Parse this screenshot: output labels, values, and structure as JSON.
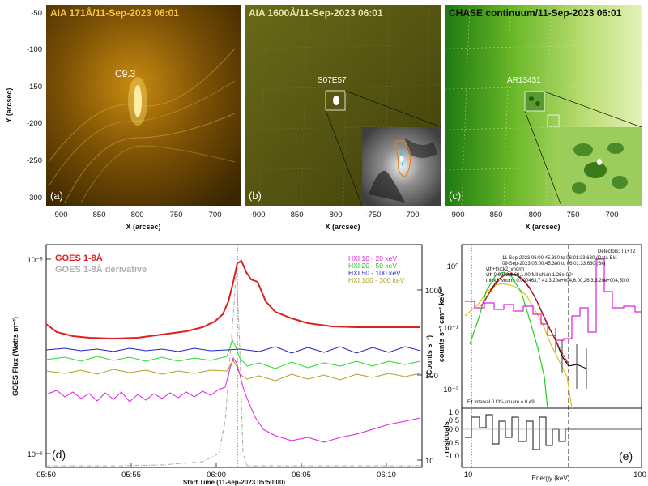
{
  "top_panels": [
    {
      "title": "AIA 171Å/11-Sep-2023 06:01",
      "tag": "(a)",
      "label": "C9.3",
      "color": "#f5c242"
    },
    {
      "title": "AIA 1600Å/11-Sep-2023 06:01",
      "tag": "(b)",
      "label": "S07E57",
      "color": "#d8d8a0"
    },
    {
      "title": "CHASE continuum/11-Sep-2023 06:01",
      "tag": "(c)",
      "label": "AR13431",
      "color": "#111111"
    }
  ],
  "top_axes": {
    "ylabel": "Y (arcsec)",
    "xlabel": "X (arcsec)",
    "yticks": [
      "-50",
      "-100",
      "-150",
      "-200",
      "-250",
      "-300"
    ],
    "xticks": [
      "-900",
      "-850",
      "-800",
      "-750",
      "-700"
    ]
  },
  "chart_data": [
    {
      "type": "line",
      "panel": "(d)",
      "title": "",
      "xlabel": "Start Time (11-sep-2023 05:50:00)",
      "ylabel_left": "GOES Flux (Watts m⁻²)",
      "ylabel_right": "(Counts s⁻¹)",
      "xticks": [
        "05:50",
        "05:55",
        "06:00",
        "06:05",
        "06:10"
      ],
      "yticks_left": [
        "10⁻⁵",
        "10⁻⁶"
      ],
      "yticks_right": [
        "1000",
        "100",
        "10"
      ],
      "legend_left": [
        {
          "name": "GOES 1-8Å",
          "color": "#e02020"
        },
        {
          "name": "GOES 1-8Å derivative",
          "color": "#b0b0b0"
        }
      ],
      "legend_right": [
        {
          "name": "HXI 10 - 20 keV",
          "color": "#e020e0"
        },
        {
          "name": "HXI 20 - 50 keV",
          "color": "#20e020"
        },
        {
          "name": "HXI 50 - 100 keV",
          "color": "#2020d0"
        },
        {
          "name": "HXI 100 - 300 keV",
          "color": "#b0a020"
        }
      ],
      "series": [
        {
          "name": "GOES 1-8Å",
          "x_min": [
            0,
            2,
            5,
            8,
            9,
            10,
            11,
            11.5,
            12,
            13,
            14,
            15,
            16,
            18,
            20,
            22
          ],
          "values": [
            4.5e-06,
            4.1e-06,
            4e-06,
            4.1e-06,
            4.4e-06,
            5.5e-06,
            8.5e-06,
            9.8e-06,
            9e-06,
            8.4e-06,
            6.5e-06,
            5.4e-06,
            4.9e-06,
            4.6e-06,
            4.5e-06,
            4.5e-06
          ]
        }
      ]
    },
    {
      "type": "line",
      "panel": "(e)",
      "xlabel": "Energy (keV)",
      "ylabel": "counts s⁻¹ cm⁻² keV⁻¹",
      "ylabel_res": "residuals",
      "xticks": [
        "10",
        "100"
      ],
      "yticks": [
        "10⁰",
        "10⁻¹",
        "10⁻²"
      ],
      "res_ticks": [
        "1.0",
        "0.5",
        "0.0",
        "-0.5",
        "-1.0"
      ],
      "detectors": "Detectors: T1+T2",
      "legend": [
        {
          "name": "11-Sep-2023 06:00:45.380 to 06:01:33.630 (Data-Bk)",
          "color": "#111111"
        },
        {
          "name": "09-Sep-2023 06:00:45.380 to 06:01:33.630 (Bk)",
          "color": "#e020e0"
        },
        {
          "name": "vth+thick2_vnorm",
          "color": "#e02020"
        },
        {
          "name": "vth 0.0962,1.69,1.00  full chian 1.26e-004",
          "color": "#20d020"
        },
        {
          "name": "thick2_vnorm 0.000463,7.41,3.20e+004,6.00,26.3,3.20e+004,50.0",
          "color": "#e0c020"
        }
      ],
      "fit_info": "Fit Interval 0   Chi-square = 0.49"
    }
  ]
}
